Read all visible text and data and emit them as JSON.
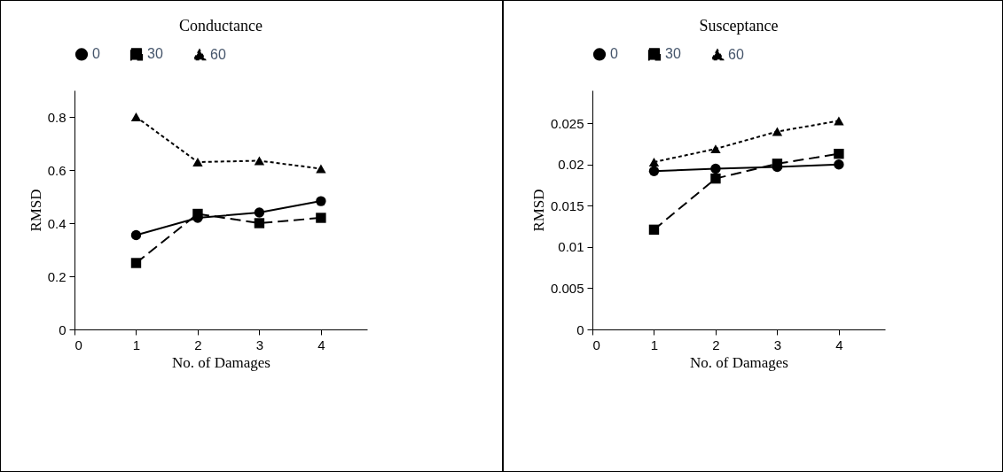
{
  "chart_data": [
    {
      "type": "line",
      "title": "Conductance",
      "xlabel": "No. of Damages",
      "ylabel": "RMSD",
      "x": [
        1,
        2,
        3,
        4
      ],
      "series": [
        {
          "name": "0",
          "color": "#000000",
          "values": [
            0.355,
            0.42,
            0.44,
            0.483
          ],
          "marker": "circle",
          "line_style": "solid"
        },
        {
          "name": "30",
          "color": "#000000",
          "values": [
            0.25,
            0.435,
            0.4,
            0.42
          ],
          "marker": "square",
          "line_style": "dashed"
        },
        {
          "name": "60",
          "color": "#000000",
          "values": [
            0.8,
            0.63,
            0.635,
            0.605
          ],
          "marker": "triangle",
          "line_style": "dotted"
        }
      ],
      "xlim": [
        0,
        4.75
      ],
      "xticks": [
        0,
        1,
        2,
        3,
        4
      ],
      "ylim": [
        0,
        0.9
      ],
      "yticks": [
        0,
        0.2,
        0.4,
        0.6,
        0.8
      ],
      "grid": false,
      "legend": "top"
    },
    {
      "type": "line",
      "title": "Susceptance",
      "xlabel": "No. of Damages",
      "ylabel": "RMSD",
      "x": [
        1,
        2,
        3,
        4
      ],
      "series": [
        {
          "name": "0",
          "color": "#000000",
          "values": [
            0.0192,
            0.0195,
            0.0197,
            0.02
          ],
          "marker": "circle",
          "line_style": "solid"
        },
        {
          "name": "30",
          "color": "#000000",
          "values": [
            0.0121,
            0.0183,
            0.0201,
            0.0213
          ],
          "marker": "square",
          "line_style": "dashed"
        },
        {
          "name": "60",
          "color": "#000000",
          "values": [
            0.0203,
            0.0219,
            0.024,
            0.0253
          ],
          "marker": "triangle",
          "line_style": "dotted"
        }
      ],
      "xlim": [
        0,
        4.75
      ],
      "xticks": [
        0,
        1,
        2,
        3,
        4
      ],
      "ylim": [
        0,
        0.029
      ],
      "yticks": [
        0,
        0.005,
        0.01,
        0.015,
        0.02,
        0.025
      ],
      "grid": false,
      "legend": "top"
    }
  ]
}
